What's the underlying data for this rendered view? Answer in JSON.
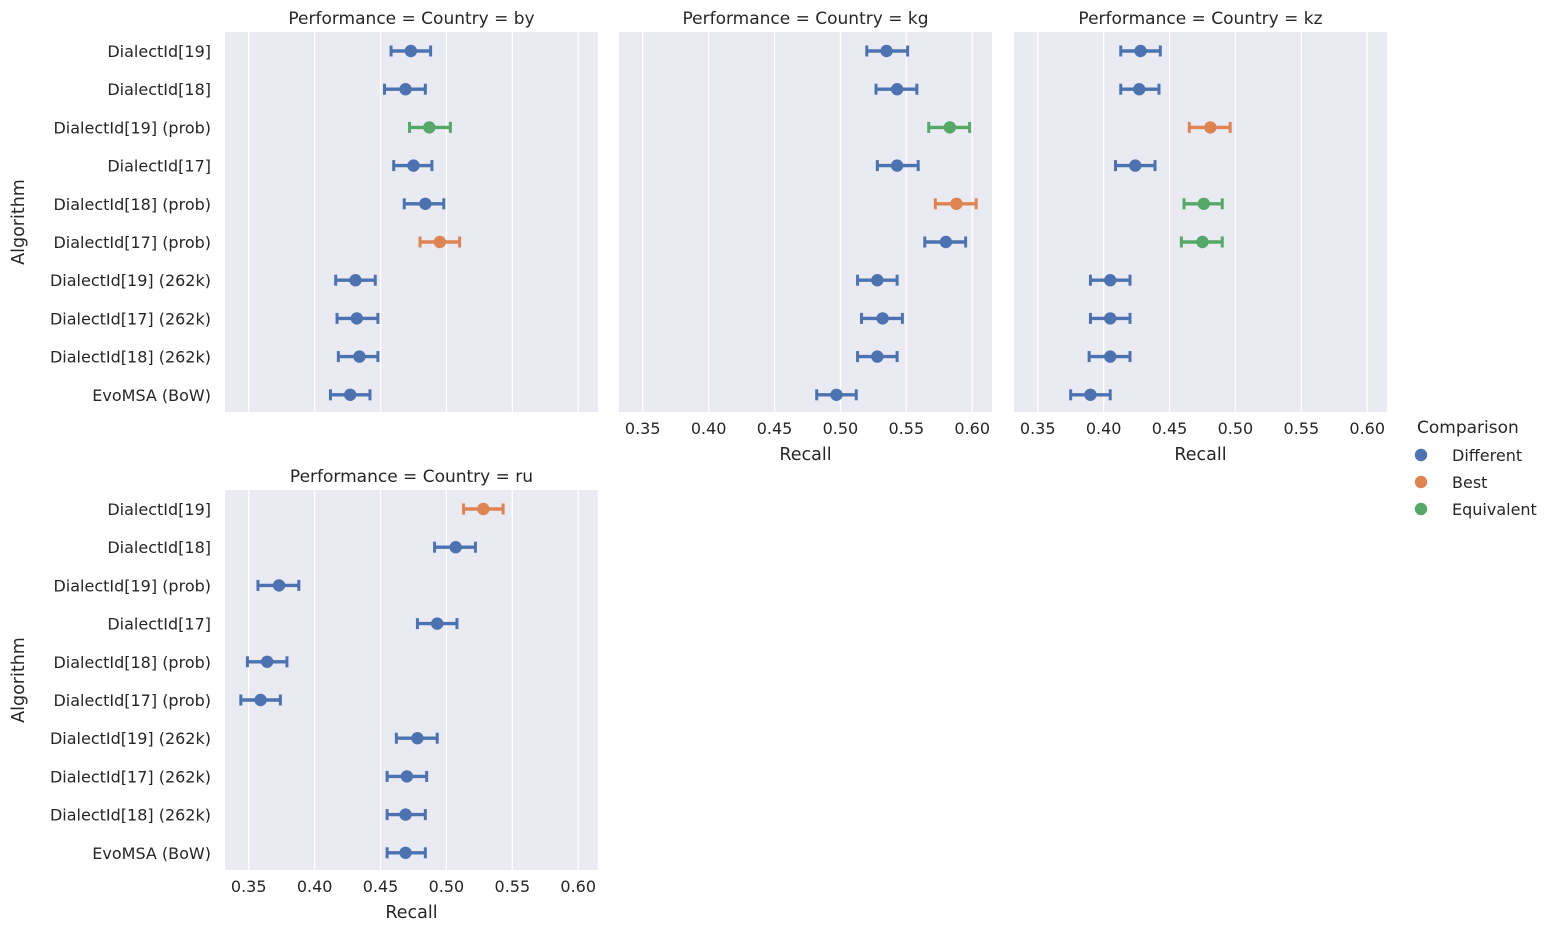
{
  "chart_data": {
    "type": "scatter",
    "subtype": "point-with-error-bars",
    "xlabel": "Recall",
    "ylabel": "Algorithm",
    "xlim": [
      0.332,
      0.615
    ],
    "xticks": [
      0.35,
      0.4,
      0.45,
      0.5,
      0.55,
      0.6
    ],
    "xtick_labels": [
      "0.35",
      "0.40",
      "0.45",
      "0.50",
      "0.55",
      "0.60"
    ],
    "grid": true,
    "categories": [
      "DialectId[19]",
      "DialectId[18]",
      "DialectId[19] (prob)",
      "DialectId[17]",
      "DialectId[18] (prob)",
      "DialectId[17] (prob)",
      "DialectId[19] (262k)",
      "DialectId[17] (262k)",
      "DialectId[18] (262k)",
      "EvoMSA (BoW)"
    ],
    "legend": {
      "title": "Comparison",
      "placement": "right",
      "entries": [
        {
          "label": "Different",
          "color": "#4c72b0"
        },
        {
          "label": "Best",
          "color": "#dd8452"
        },
        {
          "label": "Equivalent",
          "color": "#55a868"
        }
      ]
    },
    "panels": [
      {
        "title": "Performance = Country = by",
        "show_y_labels": true,
        "show_x_labels": false,
        "points": [
          {
            "value": 0.473,
            "low": 0.458,
            "high": 0.488,
            "group": "Different"
          },
          {
            "value": 0.469,
            "low": 0.453,
            "high": 0.484,
            "group": "Different"
          },
          {
            "value": 0.487,
            "low": 0.472,
            "high": 0.503,
            "group": "Equivalent"
          },
          {
            "value": 0.475,
            "low": 0.46,
            "high": 0.489,
            "group": "Different"
          },
          {
            "value": 0.484,
            "low": 0.468,
            "high": 0.498,
            "group": "Different"
          },
          {
            "value": 0.495,
            "low": 0.48,
            "high": 0.51,
            "group": "Best"
          },
          {
            "value": 0.431,
            "low": 0.416,
            "high": 0.446,
            "group": "Different"
          },
          {
            "value": 0.432,
            "low": 0.417,
            "high": 0.448,
            "group": "Different"
          },
          {
            "value": 0.434,
            "low": 0.418,
            "high": 0.448,
            "group": "Different"
          },
          {
            "value": 0.427,
            "low": 0.412,
            "high": 0.442,
            "group": "Different"
          }
        ]
      },
      {
        "title": "Performance = Country = kg",
        "show_y_labels": false,
        "show_x_labels": true,
        "points": [
          {
            "value": 0.535,
            "low": 0.52,
            "high": 0.551,
            "group": "Different"
          },
          {
            "value": 0.543,
            "low": 0.527,
            "high": 0.558,
            "group": "Different"
          },
          {
            "value": 0.583,
            "low": 0.567,
            "high": 0.598,
            "group": "Equivalent"
          },
          {
            "value": 0.543,
            "low": 0.528,
            "high": 0.559,
            "group": "Different"
          },
          {
            "value": 0.588,
            "low": 0.572,
            "high": 0.603,
            "group": "Best"
          },
          {
            "value": 0.58,
            "low": 0.564,
            "high": 0.595,
            "group": "Different"
          },
          {
            "value": 0.528,
            "low": 0.513,
            "high": 0.543,
            "group": "Different"
          },
          {
            "value": 0.532,
            "low": 0.516,
            "high": 0.547,
            "group": "Different"
          },
          {
            "value": 0.528,
            "low": 0.513,
            "high": 0.543,
            "group": "Different"
          },
          {
            "value": 0.497,
            "low": 0.482,
            "high": 0.512,
            "group": "Different"
          }
        ]
      },
      {
        "title": "Performance = Country = kz",
        "show_y_labels": false,
        "show_x_labels": true,
        "points": [
          {
            "value": 0.428,
            "low": 0.413,
            "high": 0.443,
            "group": "Different"
          },
          {
            "value": 0.427,
            "low": 0.413,
            "high": 0.442,
            "group": "Different"
          },
          {
            "value": 0.481,
            "low": 0.465,
            "high": 0.496,
            "group": "Best"
          },
          {
            "value": 0.424,
            "low": 0.409,
            "high": 0.439,
            "group": "Different"
          },
          {
            "value": 0.476,
            "low": 0.461,
            "high": 0.49,
            "group": "Equivalent"
          },
          {
            "value": 0.475,
            "low": 0.459,
            "high": 0.49,
            "group": "Equivalent"
          },
          {
            "value": 0.405,
            "low": 0.39,
            "high": 0.42,
            "group": "Different"
          },
          {
            "value": 0.405,
            "low": 0.39,
            "high": 0.42,
            "group": "Different"
          },
          {
            "value": 0.405,
            "low": 0.389,
            "high": 0.42,
            "group": "Different"
          },
          {
            "value": 0.39,
            "low": 0.375,
            "high": 0.405,
            "group": "Different"
          }
        ]
      },
      {
        "title": "Performance = Country = ru",
        "show_y_labels": true,
        "show_x_labels": true,
        "points": [
          {
            "value": 0.528,
            "low": 0.513,
            "high": 0.543,
            "group": "Best"
          },
          {
            "value": 0.507,
            "low": 0.491,
            "high": 0.522,
            "group": "Different"
          },
          {
            "value": 0.373,
            "low": 0.357,
            "high": 0.388,
            "group": "Different"
          },
          {
            "value": 0.493,
            "low": 0.478,
            "high": 0.508,
            "group": "Different"
          },
          {
            "value": 0.364,
            "low": 0.349,
            "high": 0.379,
            "group": "Different"
          },
          {
            "value": 0.359,
            "low": 0.344,
            "high": 0.374,
            "group": "Different"
          },
          {
            "value": 0.478,
            "low": 0.462,
            "high": 0.493,
            "group": "Different"
          },
          {
            "value": 0.47,
            "low": 0.455,
            "high": 0.485,
            "group": "Different"
          },
          {
            "value": 0.469,
            "low": 0.455,
            "high": 0.484,
            "group": "Different"
          },
          {
            "value": 0.469,
            "low": 0.455,
            "high": 0.484,
            "group": "Different"
          }
        ]
      }
    ]
  }
}
